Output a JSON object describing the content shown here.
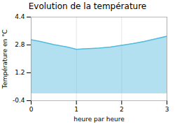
{
  "chart_data": {
    "type": "area",
    "title": "Evolution de la température",
    "xlabel": "heure par heure",
    "ylabel": "Température en °C",
    "x": [
      0,
      0.2,
      0.5,
      0.8,
      1.0,
      1.2,
      1.5,
      1.75,
      2.0,
      2.25,
      2.5,
      2.75,
      3.0
    ],
    "y": [
      3.1,
      3.0,
      2.82,
      2.68,
      2.55,
      2.58,
      2.62,
      2.68,
      2.78,
      2.88,
      3.0,
      3.15,
      3.3
    ],
    "xlim": [
      0,
      3
    ],
    "ylim": [
      -0.4,
      4.4
    ],
    "xticks": [
      0,
      1,
      2,
      3
    ],
    "yticks": [
      -0.4,
      1.2,
      2.8,
      4.4
    ],
    "color": "#55bbdd",
    "grid": "x"
  }
}
